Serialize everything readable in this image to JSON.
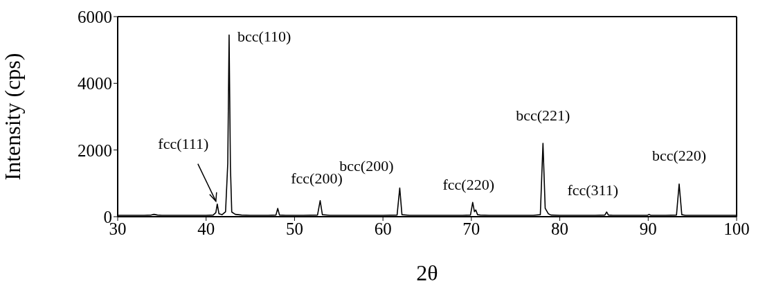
{
  "chart_data": {
    "type": "line",
    "xlabel": "2θ",
    "ylabel": "Intensity (cps)",
    "xlim": [
      30,
      100
    ],
    "xticks": [
      30,
      40,
      50,
      60,
      70,
      80,
      90,
      100
    ],
    "ylim": [
      0,
      6000
    ],
    "yticks": [
      0,
      2000,
      4000,
      6000
    ],
    "marker": "none",
    "line_style": "solid",
    "series": [
      {
        "color": "#000000",
        "x": [
          30,
          31,
          32,
          33,
          33.8,
          34.1,
          34.5,
          35,
          36,
          37,
          38,
          39,
          40,
          40.8,
          41.1,
          41.26,
          41.45,
          41.8,
          42.2,
          42.45,
          42.6,
          42.75,
          42.9,
          43.3,
          44,
          45,
          46,
          47,
          47.9,
          48.1,
          48.3,
          49,
          50,
          51,
          52.6,
          52.9,
          53.15,
          54,
          55,
          56,
          57,
          58,
          59,
          60,
          61.6,
          61.9,
          62.15,
          63,
          64,
          65,
          66,
          67,
          68,
          69,
          69.9,
          70.15,
          70.35,
          70.5,
          70.7,
          71,
          72,
          73,
          74,
          75,
          76,
          77,
          77.8,
          78.1,
          78.35,
          78.7,
          79,
          80,
          81,
          82,
          83,
          84,
          85.1,
          85.3,
          85.5,
          86,
          87,
          88,
          89,
          89.9,
          90.1,
          90.3,
          91,
          92,
          93.2,
          93.5,
          93.8,
          94.2,
          95,
          96,
          97,
          98,
          99,
          100
        ],
        "values": [
          40,
          40,
          40,
          40,
          50,
          70,
          50,
          40,
          40,
          40,
          40,
          40,
          40,
          50,
          120,
          380,
          90,
          60,
          150,
          1600,
          5450,
          1500,
          140,
          70,
          50,
          40,
          40,
          40,
          50,
          250,
          50,
          40,
          40,
          40,
          50,
          480,
          60,
          40,
          40,
          40,
          40,
          40,
          40,
          40,
          50,
          860,
          60,
          40,
          40,
          40,
          40,
          40,
          40,
          40,
          50,
          430,
          150,
          200,
          60,
          50,
          40,
          40,
          40,
          40,
          40,
          40,
          60,
          2200,
          250,
          90,
          50,
          40,
          40,
          40,
          40,
          40,
          50,
          140,
          50,
          40,
          40,
          40,
          40,
          40,
          70,
          40,
          40,
          40,
          50,
          980,
          60,
          40,
          40,
          40,
          40,
          40,
          40,
          40
        ]
      }
    ],
    "annotations": [
      {
        "text": "fcc(111)",
        "x": 41.26,
        "y": 380
      },
      {
        "text": "bcc(110)",
        "x": 42.6,
        "y": 5450
      },
      {
        "text": "fcc(200)",
        "x": 52.9,
        "y": 480
      },
      {
        "text": "bcc(200)",
        "x": 61.9,
        "y": 860
      },
      {
        "text": "fcc(220)",
        "x": 70.15,
        "y": 430
      },
      {
        "text": "bcc(221)",
        "x": 78.1,
        "y": 2200
      },
      {
        "text": "fcc(311)",
        "x": 85.3,
        "y": 140
      },
      {
        "text": "bcc(220)",
        "x": 93.5,
        "y": 980
      }
    ]
  }
}
